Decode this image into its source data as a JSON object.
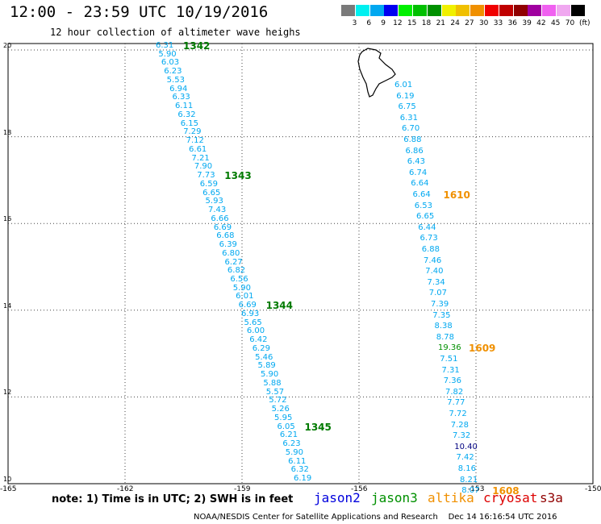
{
  "title": "12:00 - 23:59 UTC 10/19/2016",
  "subtitle": "12 hour collection of altimeter wave heighs",
  "colorbar": {
    "unit": "(ft)",
    "bins": [
      {
        "label": "3",
        "color": "#7a7a7a"
      },
      {
        "label": "6",
        "color": "#00f0f0"
      },
      {
        "label": "9",
        "color": "#00a8f0"
      },
      {
        "label": "12",
        "color": "#0000f0"
      },
      {
        "label": "15",
        "color": "#00f000"
      },
      {
        "label": "18",
        "color": "#00c000"
      },
      {
        "label": "21",
        "color": "#009000"
      },
      {
        "label": "24",
        "color": "#f0f000"
      },
      {
        "label": "27",
        "color": "#f0c000"
      },
      {
        "label": "30",
        "color": "#f09000"
      },
      {
        "label": "33",
        "color": "#f00000"
      },
      {
        "label": "36",
        "color": "#c00000"
      },
      {
        "label": "39",
        "color": "#900000"
      },
      {
        "label": "42",
        "color": "#a000a0"
      },
      {
        "label": "45",
        "color": "#f060f0"
      },
      {
        "label": "70",
        "color": "#f0a8f0"
      },
      {
        "label": "",
        "color": "#000000"
      }
    ]
  },
  "map": {
    "lon_range": [
      -165,
      -150
    ],
    "lat_range": [
      10,
      20
    ],
    "y_ticks": [
      "20",
      "18",
      "16",
      "14",
      "12",
      "10"
    ],
    "x_ticks": [
      "-165",
      "-162",
      "-159",
      "-156",
      "-153",
      "-150"
    ]
  },
  "track_west": {
    "values": [
      "6.31",
      "5.90",
      "6.03",
      "6.23",
      "5.53",
      "6.94",
      "6.33",
      "6.11",
      "6.32",
      "6.15",
      "7.29",
      "7.12",
      "6.61",
      "7.21",
      "7.90",
      "7.73",
      "6.59",
      "6.65",
      "5.93",
      "7.43",
      "6.66",
      "6.69",
      "6.68",
      "6.39",
      "6.80",
      "6.27",
      "6.82",
      "6.56",
      "5.90",
      "6.01",
      "6.69",
      "6.93",
      "5.65",
      "6.00",
      "6.42",
      "6.29",
      "5.46",
      "5.89",
      "5.90",
      "5.88",
      "5.57",
      "5.72",
      "5.26",
      "5.95",
      "6.05",
      "6.21",
      "6.23",
      "5.90",
      "6.11",
      "6.32",
      "6.19"
    ],
    "times": [
      {
        "label": "1342",
        "index": 0
      },
      {
        "label": "1343",
        "index": 15
      },
      {
        "label": "1344",
        "index": 30
      },
      {
        "label": "1345",
        "index": 44
      }
    ]
  },
  "track_east": {
    "values": [
      "6.01",
      "6.19",
      "6.75",
      "6.31",
      "6.70",
      "6.88",
      "6.86",
      "6.43",
      "6.74",
      "6.64",
      "6.64",
      "6.53",
      "6.65",
      "6.44",
      "6.73",
      "6.88",
      "7.46",
      "7.40",
      "7.34",
      "7.07",
      "7.39",
      "7.35",
      "8.38",
      "8.78",
      "19.36",
      "7.51",
      "7.31",
      "7.36",
      "7.82",
      "7.77",
      "7.72",
      "7.28",
      "7.32",
      "10.40",
      "7.42",
      "8.16",
      "8.21",
      "8.07"
    ],
    "highlight": {
      "index": 24,
      "color": "#009000"
    },
    "dark_index": 33,
    "times": [
      {
        "label": "1610",
        "index": 10
      },
      {
        "label": "1609",
        "index": 24
      },
      {
        "label": "1608",
        "index": 37
      }
    ]
  },
  "note": "note: 1) Time is in UTC; 2) SWH is in feet",
  "satellites": [
    {
      "name": "jason2",
      "color": "#0000dd"
    },
    {
      "name": "jason3",
      "color": "#009000"
    },
    {
      "name": "altika",
      "color": "#f09000"
    },
    {
      "name": "cryosat",
      "color": "#dd0000"
    },
    {
      "name": "s3a",
      "color": "#900000"
    }
  ],
  "credit": "NOAA/NESDIS Center for Satellite Applications and Research    Dec 14 16:16:54 UTC 2016"
}
